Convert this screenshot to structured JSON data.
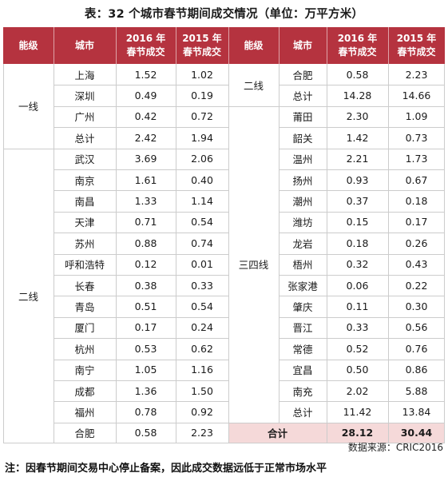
{
  "title": "表：32 个城市春节期间成交情况（单位：万平方米）",
  "colors": {
    "header_bg": "#b5333f",
    "header_text": "#ffffff",
    "border": "#cccccc",
    "total_bg": "#f5d9d9"
  },
  "header": {
    "tier": "能级",
    "city": "城市",
    "y2016": [
      "2016 年",
      "春节成交"
    ],
    "y2015": [
      "2015 年",
      "春节成交"
    ]
  },
  "left": {
    "groups": [
      {
        "tier": "一线",
        "rows": [
          {
            "city": "上海",
            "y2016": "1.52",
            "y2015": "1.02"
          },
          {
            "city": "深圳",
            "y2016": "0.49",
            "y2015": "0.19"
          },
          {
            "city": "广州",
            "y2016": "0.42",
            "y2015": "0.72"
          },
          {
            "city": "总计",
            "y2016": "2.42",
            "y2015": "1.94"
          }
        ]
      },
      {
        "tier": "二线",
        "rows": [
          {
            "city": "武汉",
            "y2016": "3.69",
            "y2015": "2.06"
          },
          {
            "city": "南京",
            "y2016": "1.61",
            "y2015": "0.40"
          },
          {
            "city": "南昌",
            "y2016": "1.33",
            "y2015": "1.14"
          },
          {
            "city": "天津",
            "y2016": "0.71",
            "y2015": "0.54"
          },
          {
            "city": "苏州",
            "y2016": "0.88",
            "y2015": "0.74"
          },
          {
            "city": "呼和浩特",
            "y2016": "0.12",
            "y2015": "0.01"
          },
          {
            "city": "长春",
            "y2016": "0.38",
            "y2015": "0.33"
          },
          {
            "city": "青岛",
            "y2016": "0.51",
            "y2015": "0.54"
          },
          {
            "city": "厦门",
            "y2016": "0.17",
            "y2015": "0.24"
          },
          {
            "city": "杭州",
            "y2016": "0.53",
            "y2015": "0.62"
          },
          {
            "city": "南宁",
            "y2016": "1.05",
            "y2015": "1.16"
          },
          {
            "city": "成都",
            "y2016": "1.36",
            "y2015": "1.50"
          },
          {
            "city": "福州",
            "y2016": "0.78",
            "y2015": "0.92"
          },
          {
            "city": "合肥",
            "y2016": "0.58",
            "y2015": "2.23"
          }
        ]
      }
    ]
  },
  "right": {
    "groups": [
      {
        "tier": "二线",
        "rows": [
          {
            "city": "合肥",
            "y2016": "0.58",
            "y2015": "2.23"
          },
          {
            "city": "总计",
            "y2016": "14.28",
            "y2015": "14.66"
          }
        ]
      },
      {
        "tier": "三四线",
        "rows": [
          {
            "city": "莆田",
            "y2016": "2.30",
            "y2015": "1.09"
          },
          {
            "city": "韶关",
            "y2016": "1.42",
            "y2015": "0.73"
          },
          {
            "city": "温州",
            "y2016": "2.21",
            "y2015": "1.73"
          },
          {
            "city": "扬州",
            "y2016": "0.93",
            "y2015": "0.67"
          },
          {
            "city": "潮州",
            "y2016": "0.37",
            "y2015": "0.18"
          },
          {
            "city": "潍坊",
            "y2016": "0.15",
            "y2015": "0.17"
          },
          {
            "city": "龙岩",
            "y2016": "0.18",
            "y2015": "0.26"
          },
          {
            "city": "梧州",
            "y2016": "0.32",
            "y2015": "0.43"
          },
          {
            "city": "张家港",
            "y2016": "0.06",
            "y2015": "0.22"
          },
          {
            "city": "肇庆",
            "y2016": "0.11",
            "y2015": "0.30"
          },
          {
            "city": "晋江",
            "y2016": "0.33",
            "y2015": "0.56"
          },
          {
            "city": "常德",
            "y2016": "0.52",
            "y2015": "0.76"
          },
          {
            "city": "宜昌",
            "y2016": "0.50",
            "y2015": "0.86"
          },
          {
            "city": "南充",
            "y2016": "2.02",
            "y2015": "5.88"
          },
          {
            "city": "总计",
            "y2016": "11.42",
            "y2015": "13.84"
          }
        ]
      }
    ]
  },
  "grand_total": {
    "label": "合计",
    "y2016": "28.12",
    "y2015": "30.44"
  },
  "source": "数据来源：CRIC2016",
  "note": "注：因春节期间交易中心停止备案，因此成交数据远低于正常市场水平"
}
